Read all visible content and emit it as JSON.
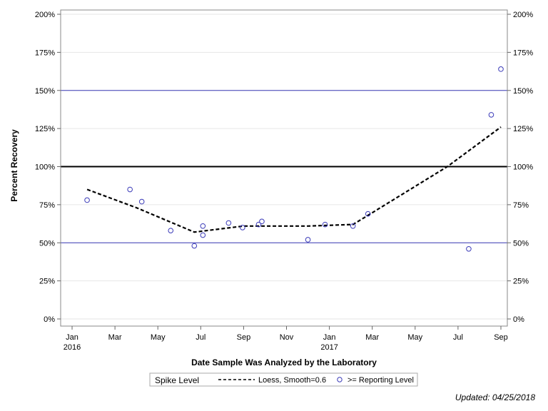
{
  "chart_data": {
    "type": "scatter",
    "xlabel": "Date Sample Was Analyzed by the Laboratory",
    "ylabel": "Percent Recovery",
    "x_unit": "months since 2016-01-01",
    "xlim": [
      -0.5,
      20.3
    ],
    "ylim": [
      0,
      200
    ],
    "yticks": [
      0,
      25,
      50,
      75,
      100,
      125,
      150,
      175,
      200
    ],
    "ytick_labels": [
      "0%",
      "25%",
      "50%",
      "75%",
      "100%",
      "125%",
      "150%",
      "175%",
      "200%"
    ],
    "xticks": [
      {
        "x": 0,
        "label": "Jan",
        "year": "2016"
      },
      {
        "x": 2,
        "label": "Mar",
        "year": ""
      },
      {
        "x": 4,
        "label": "May",
        "year": ""
      },
      {
        "x": 6,
        "label": "Jul",
        "year": ""
      },
      {
        "x": 8,
        "label": "Sep",
        "year": ""
      },
      {
        "x": 10,
        "label": "Nov",
        "year": ""
      },
      {
        "x": 12,
        "label": "Jan",
        "year": "2017"
      },
      {
        "x": 14,
        "label": "Mar",
        "year": ""
      },
      {
        "x": 16,
        "label": "May",
        "year": ""
      },
      {
        "x": 18,
        "label": "Jul",
        "year": ""
      },
      {
        "x": 20,
        "label": "Sep",
        "year": ""
      }
    ],
    "reference_lines": [
      {
        "y": 100,
        "color": "#000000",
        "width": 2
      },
      {
        "y": 150,
        "color": "#3a3ab8",
        "width": 1
      },
      {
        "y": 50,
        "color": "#3a3ab8",
        "width": 1
      }
    ],
    "series": [
      {
        "name": ">= Reporting Level",
        "kind": "markers",
        "color": "#3a3ab8",
        "points": [
          {
            "x": 0.7,
            "y": 78
          },
          {
            "x": 2.7,
            "y": 85
          },
          {
            "x": 3.25,
            "y": 77
          },
          {
            "x": 4.6,
            "y": 58
          },
          {
            "x": 5.7,
            "y": 48
          },
          {
            "x": 6.1,
            "y": 61
          },
          {
            "x": 6.1,
            "y": 55
          },
          {
            "x": 7.3,
            "y": 63
          },
          {
            "x": 7.95,
            "y": 60
          },
          {
            "x": 8.7,
            "y": 62
          },
          {
            "x": 8.85,
            "y": 64
          },
          {
            "x": 11.0,
            "y": 52
          },
          {
            "x": 11.8,
            "y": 62
          },
          {
            "x": 13.1,
            "y": 61
          },
          {
            "x": 13.8,
            "y": 69
          },
          {
            "x": 18.5,
            "y": 46
          },
          {
            "x": 19.55,
            "y": 134
          },
          {
            "x": 20.0,
            "y": 164
          }
        ]
      },
      {
        "name": "Loess, Smooth=0.6",
        "kind": "line",
        "dash": true,
        "color": "#000000",
        "points": [
          {
            "x": 0.7,
            "y": 85
          },
          {
            "x": 3.0,
            "y": 73
          },
          {
            "x": 5.7,
            "y": 57
          },
          {
            "x": 8.0,
            "y": 61
          },
          {
            "x": 11.0,
            "y": 61
          },
          {
            "x": 13.1,
            "y": 62
          },
          {
            "x": 13.8,
            "y": 68
          },
          {
            "x": 17.5,
            "y": 100
          },
          {
            "x": 20.0,
            "y": 126
          }
        ]
      }
    ],
    "legend": {
      "title": "Spike Level",
      "entries": [
        {
          "label": "Loess, Smooth=0.6",
          "kind": "line"
        },
        {
          "label": ">= Reporting Level",
          "kind": "marker"
        }
      ]
    },
    "footnote": "Updated: 04/25/2018"
  }
}
